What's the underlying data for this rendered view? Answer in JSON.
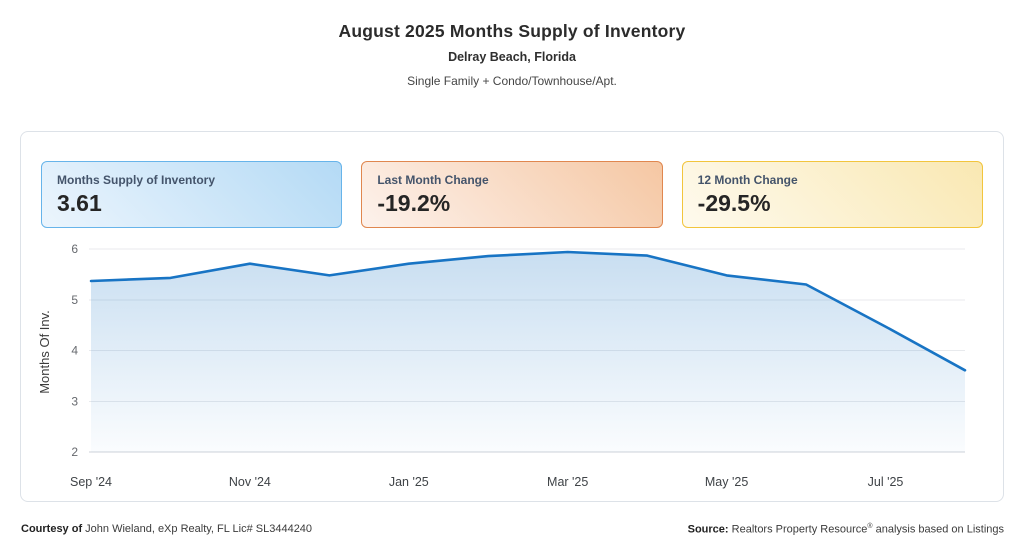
{
  "header": {
    "title": "August 2025 Months Supply of Inventory",
    "subtitle": "Delray Beach, Florida",
    "property_types": "Single Family + Condo/Townhouse/Apt."
  },
  "stat_cards": [
    {
      "label": "Months Supply of Inventory",
      "value": "3.61",
      "theme": "blue"
    },
    {
      "label": "Last Month Change",
      "value": "-19.2%",
      "theme": "orange"
    },
    {
      "label": "12 Month Change",
      "value": "-29.5%",
      "theme": "yellow"
    }
  ],
  "chart_data": {
    "type": "area",
    "title": "August 2025 Months Supply of Inventory",
    "ylabel": "Months Of Inv.",
    "xlabel": "",
    "x": [
      "Sep '24",
      "Oct '24",
      "Nov '24",
      "Dec '24",
      "Jan '25",
      "Feb '25",
      "Mar '25",
      "Apr '25",
      "May '25",
      "Jun '25",
      "Jul '25",
      "Aug '25"
    ],
    "values": [
      5.37,
      5.43,
      5.71,
      5.48,
      5.71,
      5.86,
      5.94,
      5.87,
      5.48,
      5.3,
      4.47,
      3.61
    ],
    "ylim": [
      2,
      6
    ],
    "yticks": [
      2,
      3,
      4,
      5,
      6
    ],
    "xticks": [
      {
        "i": 0,
        "label": "Sep '24"
      },
      {
        "i": 2,
        "label": "Nov '24"
      },
      {
        "i": 4,
        "label": "Jan '25"
      },
      {
        "i": 6,
        "label": "Mar '25"
      },
      {
        "i": 8,
        "label": "May '25"
      },
      {
        "i": 10,
        "label": "Jul '25"
      }
    ],
    "grid": true,
    "legend": "none",
    "line_color": "#1874c4",
    "fill_top_opacity": 0.24,
    "fill_bottom_opacity": 0.02,
    "grid_color": "#e8eaed",
    "axis_color": "#ccd2d9",
    "tick_color": "#66696e",
    "xlabel_color": "#3f4347",
    "ylabel_color": "#3c3c3c"
  },
  "footer": {
    "courtesy_bold": "Courtesy of",
    "courtesy_text": " John Wieland, eXp Realty, FL Lic# SL3444240",
    "source_bold": "Source:",
    "source_pre": " Realtors Property Resource",
    "source_sup": "®",
    "source_post": " analysis based on Listings"
  }
}
